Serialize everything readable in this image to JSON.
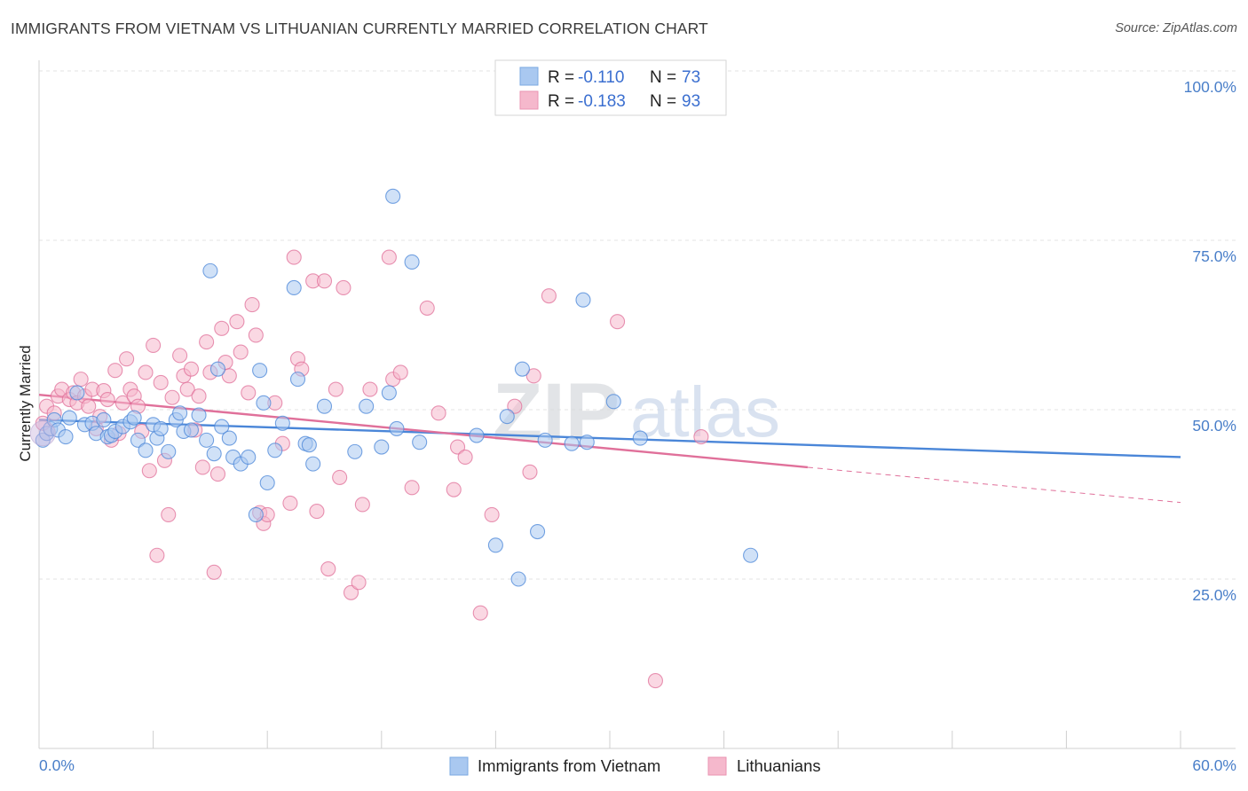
{
  "header": {
    "title": "IMMIGRANTS FROM VIETNAM VS LITHUANIAN CURRENTLY MARRIED CORRELATION CHART",
    "source": "Source: ZipAtlas.com"
  },
  "watermark": {
    "zip": "ZIP",
    "atlas": "atlas"
  },
  "legend": {
    "rows": [
      {
        "r_label": "R =",
        "r_value": "-0.110",
        "n_label": "N =",
        "n_value": "73",
        "color": "#a9c8f0"
      },
      {
        "r_label": "R =",
        "r_value": "-0.183",
        "n_label": "N =",
        "n_value": "93",
        "color": "#f5b8cc"
      }
    ]
  },
  "bottom_legend": [
    {
      "label": "Immigrants from Vietnam",
      "color": "#a9c8f0"
    },
    {
      "label": "Lithuanians",
      "color": "#f5b8cc"
    }
  ],
  "chart_data": {
    "type": "scatter",
    "title": "IMMIGRANTS FROM VIETNAM VS LITHUANIAN CURRENTLY MARRIED CORRELATION CHART",
    "xlabel": "",
    "ylabel": "Currently Married",
    "xlim": [
      0,
      60
    ],
    "ylim": [
      0,
      100
    ],
    "x_tick_labels": [
      "0.0%",
      "60.0%"
    ],
    "y_ticks": [
      25,
      50,
      75,
      100
    ],
    "y_tick_labels": [
      "25.0%",
      "50.0%",
      "75.0%",
      "100.0%"
    ],
    "grid": true,
    "legend_position": "top-center",
    "series": [
      {
        "name": "Immigrants from Vietnam",
        "color": "#4a86d8",
        "fill": "#a9c8f0",
        "points": [
          [
            0.2,
            45.5
          ],
          [
            0.4,
            46.5
          ],
          [
            0.6,
            47.2
          ],
          [
            0.8,
            48.5
          ],
          [
            1.0,
            47.0
          ],
          [
            1.4,
            46.0
          ],
          [
            1.6,
            48.8
          ],
          [
            2.0,
            52.5
          ],
          [
            2.4,
            47.8
          ],
          [
            2.8,
            48.0
          ],
          [
            3.0,
            46.5
          ],
          [
            3.4,
            48.5
          ],
          [
            3.6,
            46.0
          ],
          [
            3.8,
            46.2
          ],
          [
            4.0,
            46.8
          ],
          [
            4.4,
            47.5
          ],
          [
            4.8,
            48.2
          ],
          [
            5.0,
            48.8
          ],
          [
            5.2,
            45.5
          ],
          [
            5.6,
            44.0
          ],
          [
            6.0,
            47.8
          ],
          [
            6.2,
            45.8
          ],
          [
            6.4,
            47.2
          ],
          [
            6.8,
            43.8
          ],
          [
            7.2,
            48.5
          ],
          [
            7.4,
            49.5
          ],
          [
            7.6,
            46.8
          ],
          [
            8.0,
            47.0
          ],
          [
            8.4,
            49.2
          ],
          [
            8.8,
            45.5
          ],
          [
            9.0,
            70.5
          ],
          [
            9.2,
            43.5
          ],
          [
            9.4,
            56.0
          ],
          [
            9.6,
            47.5
          ],
          [
            10.0,
            45.8
          ],
          [
            10.2,
            43.0
          ],
          [
            10.6,
            42.0
          ],
          [
            11.0,
            43.0
          ],
          [
            11.4,
            34.5
          ],
          [
            11.6,
            55.8
          ],
          [
            11.8,
            51.0
          ],
          [
            12.0,
            39.2
          ],
          [
            12.4,
            44.0
          ],
          [
            12.8,
            48.0
          ],
          [
            13.4,
            68.0
          ],
          [
            13.6,
            54.5
          ],
          [
            14.0,
            45.0
          ],
          [
            14.2,
            44.8
          ],
          [
            14.4,
            42.0
          ],
          [
            15.0,
            50.5
          ],
          [
            16.6,
            43.8
          ],
          [
            17.2,
            50.5
          ],
          [
            18.0,
            44.5
          ],
          [
            18.4,
            52.5
          ],
          [
            18.6,
            81.5
          ],
          [
            18.8,
            47.2
          ],
          [
            19.6,
            71.8
          ],
          [
            20.0,
            45.2
          ],
          [
            23.0,
            46.2
          ],
          [
            24.0,
            30.0
          ],
          [
            24.6,
            49.0
          ],
          [
            25.2,
            25.0
          ],
          [
            25.4,
            56.0
          ],
          [
            26.2,
            32.0
          ],
          [
            26.6,
            45.5
          ],
          [
            28.0,
            45.0
          ],
          [
            28.6,
            66.2
          ],
          [
            28.8,
            45.2
          ],
          [
            30.2,
            51.2
          ],
          [
            31.6,
            45.8
          ],
          [
            37.4,
            28.5
          ]
        ]
      },
      {
        "name": "Lithuanians",
        "color": "#e0709a",
        "fill": "#f5b8cc",
        "points": [
          [
            0.2,
            48.0
          ],
          [
            0.4,
            50.5
          ],
          [
            0.8,
            49.5
          ],
          [
            1.0,
            52.0
          ],
          [
            1.2,
            53.0
          ],
          [
            1.6,
            51.5
          ],
          [
            1.8,
            52.5
          ],
          [
            2.0,
            51.0
          ],
          [
            2.2,
            54.5
          ],
          [
            2.4,
            52.0
          ],
          [
            2.6,
            50.5
          ],
          [
            2.8,
            53.0
          ],
          [
            3.0,
            47.2
          ],
          [
            3.2,
            49.0
          ],
          [
            3.4,
            52.8
          ],
          [
            3.6,
            51.5
          ],
          [
            3.8,
            45.5
          ],
          [
            4.0,
            55.8
          ],
          [
            4.2,
            46.5
          ],
          [
            4.4,
            51.0
          ],
          [
            4.6,
            57.5
          ],
          [
            4.8,
            53.0
          ],
          [
            5.0,
            52.0
          ],
          [
            5.2,
            50.5
          ],
          [
            5.4,
            46.8
          ],
          [
            5.6,
            55.5
          ],
          [
            5.8,
            41.0
          ],
          [
            6.0,
            59.5
          ],
          [
            6.2,
            28.5
          ],
          [
            6.4,
            54.0
          ],
          [
            6.6,
            42.5
          ],
          [
            6.8,
            34.5
          ],
          [
            7.0,
            51.8
          ],
          [
            7.4,
            58.0
          ],
          [
            7.6,
            55.0
          ],
          [
            7.8,
            53.0
          ],
          [
            8.0,
            56.0
          ],
          [
            8.2,
            47.0
          ],
          [
            8.4,
            52.0
          ],
          [
            8.6,
            41.5
          ],
          [
            8.8,
            60.0
          ],
          [
            9.0,
            55.5
          ],
          [
            9.2,
            26.0
          ],
          [
            9.4,
            40.5
          ],
          [
            9.6,
            62.0
          ],
          [
            9.8,
            57.0
          ],
          [
            10.0,
            55.0
          ],
          [
            10.4,
            63.0
          ],
          [
            10.6,
            58.5
          ],
          [
            11.0,
            52.5
          ],
          [
            11.2,
            65.5
          ],
          [
            11.4,
            61.0
          ],
          [
            11.6,
            34.8
          ],
          [
            11.8,
            33.2
          ],
          [
            12.0,
            34.5
          ],
          [
            12.4,
            51.0
          ],
          [
            12.8,
            45.0
          ],
          [
            13.2,
            36.2
          ],
          [
            13.4,
            72.5
          ],
          [
            13.6,
            57.5
          ],
          [
            13.8,
            56.0
          ],
          [
            14.4,
            69.0
          ],
          [
            14.6,
            35.0
          ],
          [
            15.0,
            69.0
          ],
          [
            15.2,
            26.5
          ],
          [
            15.6,
            53.0
          ],
          [
            15.8,
            40.0
          ],
          [
            16.0,
            68.0
          ],
          [
            16.4,
            23.0
          ],
          [
            16.8,
            24.5
          ],
          [
            17.0,
            36.0
          ],
          [
            17.4,
            53.0
          ],
          [
            18.4,
            72.5
          ],
          [
            18.6,
            54.5
          ],
          [
            19.0,
            55.5
          ],
          [
            19.6,
            38.5
          ],
          [
            20.4,
            65.0
          ],
          [
            21.0,
            49.5
          ],
          [
            21.8,
            38.2
          ],
          [
            22.0,
            44.5
          ],
          [
            22.4,
            43.0
          ],
          [
            23.2,
            20.0
          ],
          [
            23.8,
            34.5
          ],
          [
            25.0,
            50.5
          ],
          [
            25.8,
            40.8
          ],
          [
            26.0,
            55.0
          ],
          [
            26.8,
            66.8
          ],
          [
            30.4,
            63.0
          ],
          [
            32.4,
            10.0
          ],
          [
            34.8,
            46.0
          ]
        ]
      }
    ],
    "trend_lines": [
      {
        "series": "Immigrants from Vietnam",
        "x": [
          0,
          60
        ],
        "y": [
          48.5,
          43.0
        ],
        "style": "solid"
      },
      {
        "series": "Lithuanians",
        "x": [
          0,
          40.4
        ],
        "y": [
          52.2,
          41.5
        ],
        "style": "solid"
      },
      {
        "series": "Lithuanians",
        "x": [
          40.4,
          60
        ],
        "y": [
          41.5,
          36.3
        ],
        "style": "dashed"
      }
    ]
  }
}
